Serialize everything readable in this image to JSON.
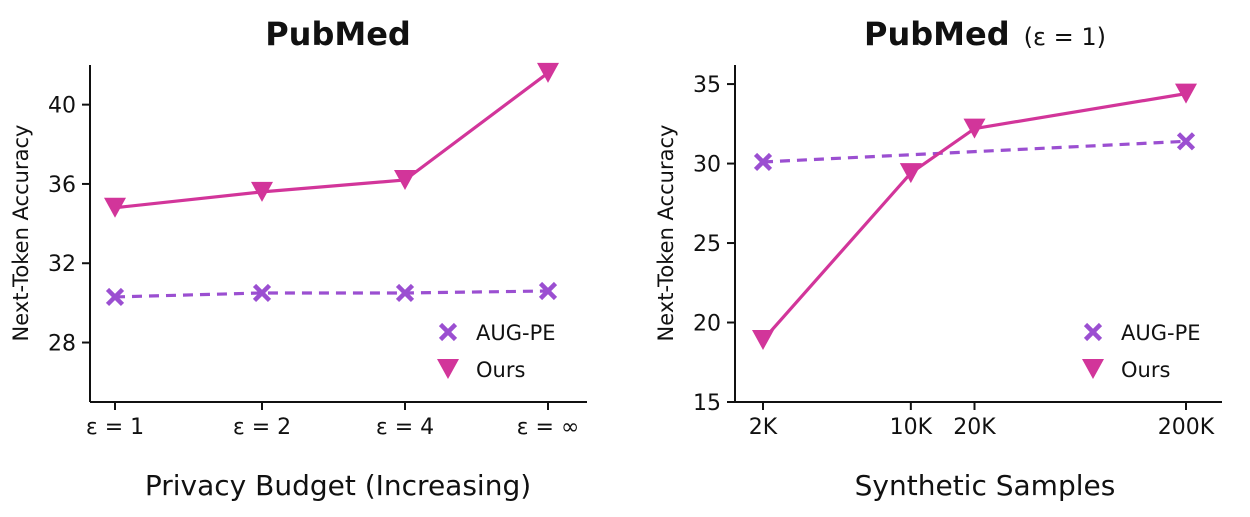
{
  "chart_data": [
    {
      "type": "line",
      "title": "PubMed",
      "xlabel": "Privacy Budget (Increasing)",
      "ylabel": "Next-Token Accuracy",
      "categories": [
        "ε = 1",
        "ε = 2",
        "ε = 4",
        "ε = ∞"
      ],
      "yticks": [
        28,
        32,
        36,
        40
      ],
      "ylim": [
        25,
        42
      ],
      "grid": false,
      "legend": "bottom-right",
      "series": [
        {
          "name": "AUG-PE",
          "values": [
            30.3,
            30.5,
            30.5,
            30.6
          ],
          "color": "#9b4fd1",
          "marker": "x",
          "dashed": true
        },
        {
          "name": "Ours",
          "values": [
            34.8,
            35.6,
            36.2,
            41.6
          ],
          "color": "#d2359a",
          "marker": "triangle-down",
          "dashed": false
        }
      ]
    },
    {
      "type": "line",
      "title": "PubMed",
      "title_suffix": "(ε = 1)",
      "xlabel": "Synthetic Samples",
      "ylabel": "Next-Token Accuracy",
      "x_scale": "log",
      "x": [
        2000,
        10000,
        20000,
        200000
      ],
      "xticklabels": [
        "2K",
        "10K",
        "20K",
        "200K"
      ],
      "yticks": [
        15,
        20,
        25,
        30,
        35
      ],
      "ylim": [
        15,
        36.2
      ],
      "grid": false,
      "legend": "bottom-right",
      "series": [
        {
          "name": "AUG-PE",
          "values": [
            30.1,
            null,
            null,
            31.4
          ],
          "color": "#9b4fd1",
          "marker": "x",
          "dashed": true
        },
        {
          "name": "Ours",
          "values": [
            18.9,
            29.4,
            32.2,
            34.4
          ],
          "color": "#d2359a",
          "marker": "triangle-down",
          "dashed": false
        }
      ]
    }
  ]
}
